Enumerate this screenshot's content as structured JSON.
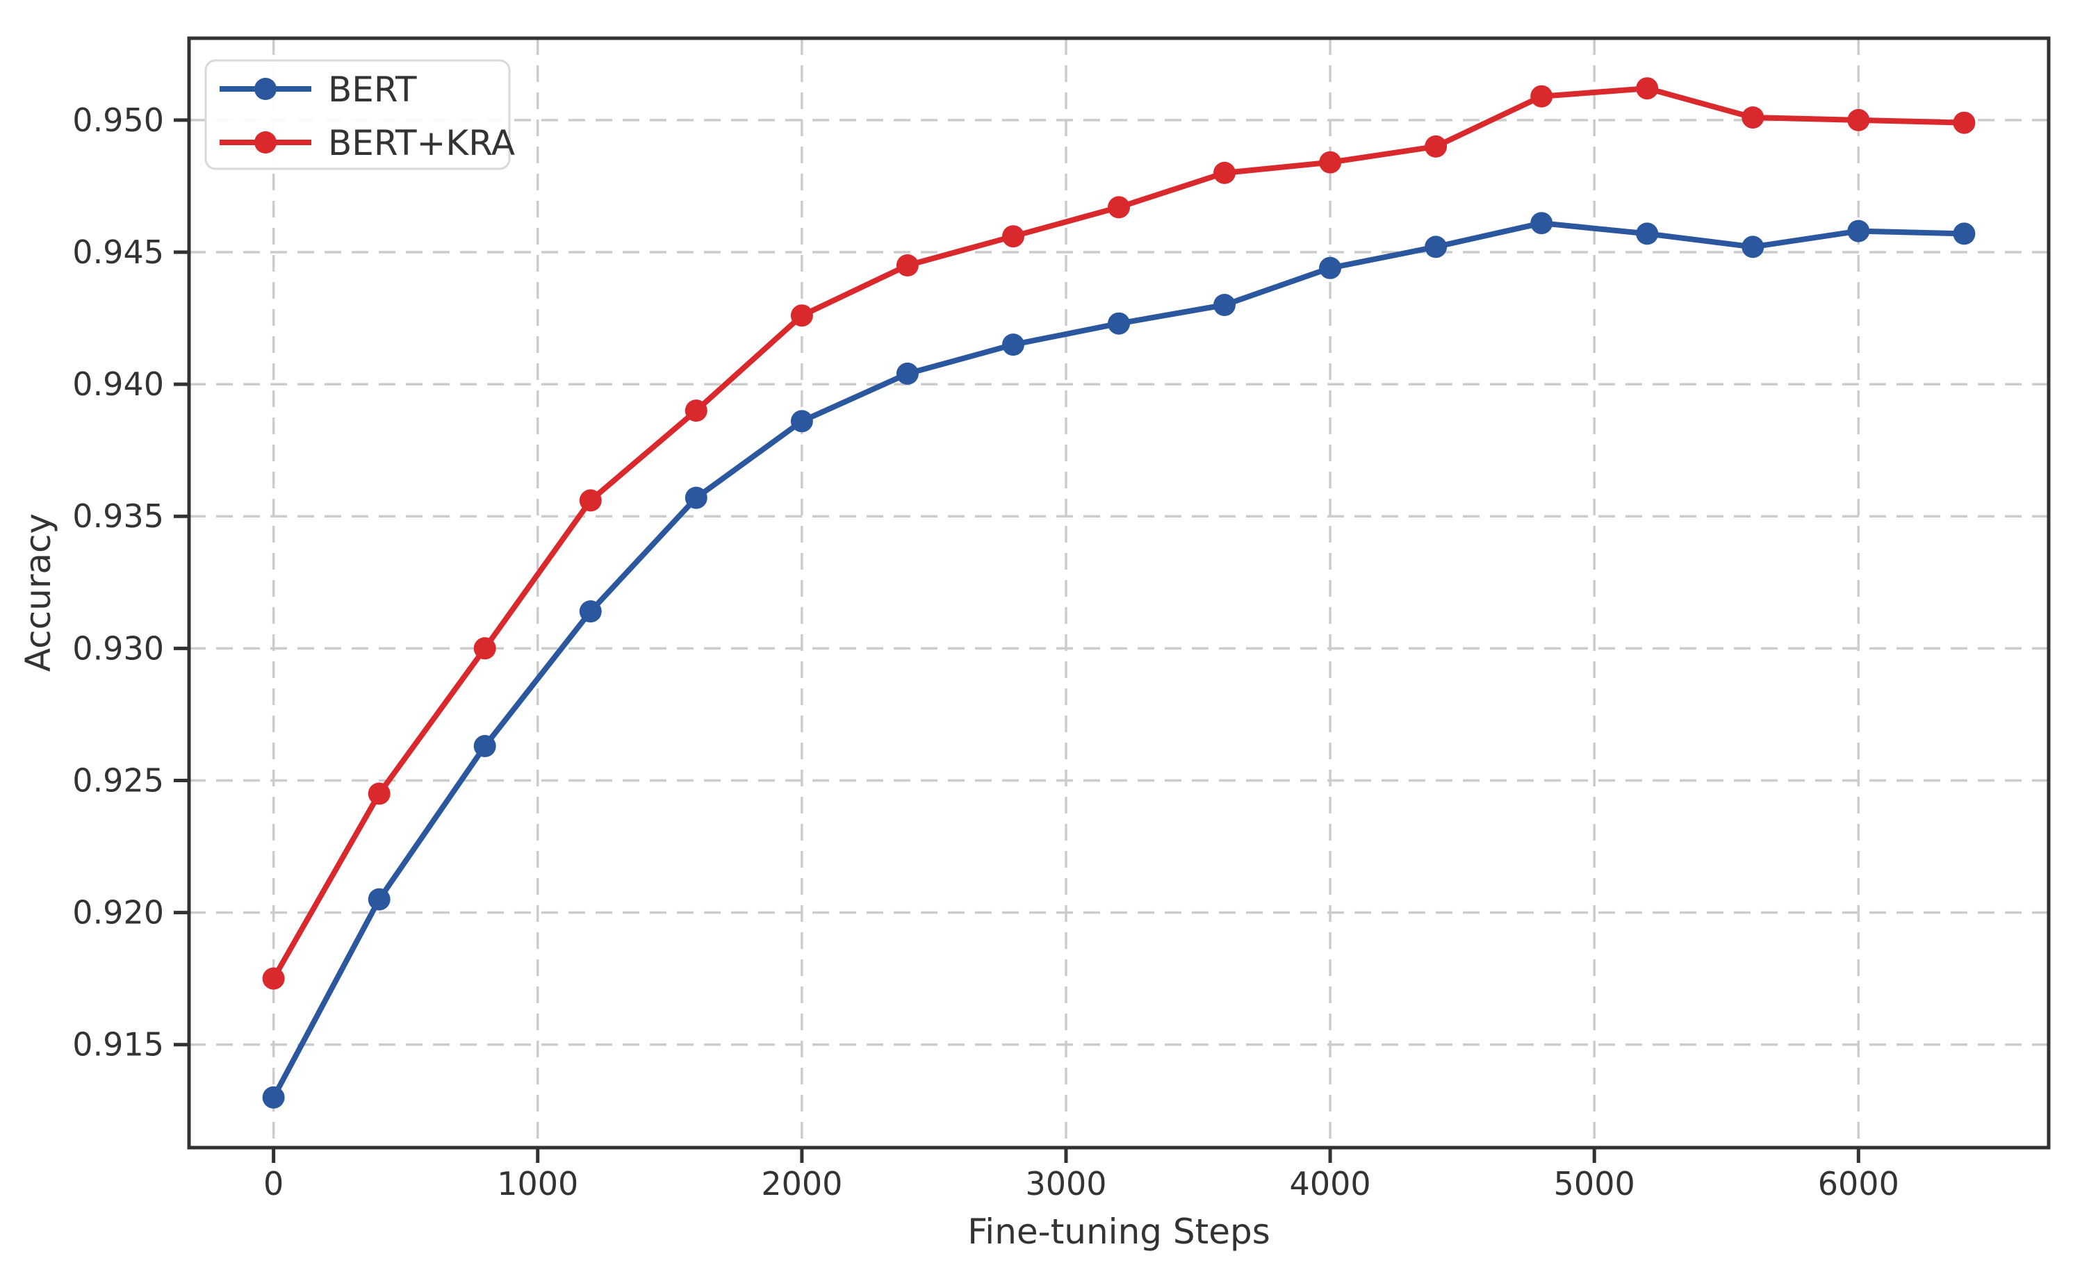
{
  "figure": {
    "background": "#ffffff",
    "axis_color": "#323232",
    "text_color": "#333333",
    "grid_color": "#cccccc",
    "legend_border_color": "#d9d9d9"
  },
  "chart_data": {
    "type": "line",
    "title": "",
    "xlabel": "Fine-tuning Steps",
    "ylabel": "Accuracy",
    "marker": "circle",
    "grid": true,
    "legend_position": "upper-left",
    "x": [
      0,
      400,
      800,
      1200,
      1600,
      2000,
      2400,
      2800,
      3200,
      3600,
      4000,
      4400,
      4800,
      5200,
      5600,
      6000,
      6400
    ],
    "series": [
      {
        "name": "BERT",
        "color": "#2b579e",
        "values": [
          0.913,
          0.9205,
          0.9263,
          0.9314,
          0.9357,
          0.9386,
          0.9404,
          0.9415,
          0.9423,
          0.943,
          0.9444,
          0.9452,
          0.9461,
          0.9457,
          0.9452,
          0.9458,
          0.9457
        ]
      },
      {
        "name": "BERT+KRA",
        "color": "#d9292c",
        "values": [
          0.9175,
          0.9245,
          0.93,
          0.9356,
          0.939,
          0.9426,
          0.9445,
          0.9456,
          0.9467,
          0.948,
          0.9484,
          0.949,
          0.9509,
          0.9512,
          0.9501,
          0.95,
          0.9499
        ]
      }
    ],
    "xlim": [
      -320,
      6720
    ],
    "ylim": [
      0.9111,
      0.9531
    ],
    "xticks": [
      0,
      1000,
      2000,
      3000,
      4000,
      5000,
      6000
    ],
    "yticks": [
      0.915,
      0.92,
      0.925,
      0.93,
      0.935,
      0.94,
      0.945,
      0.95
    ],
    "ytick_decimals": 3
  }
}
